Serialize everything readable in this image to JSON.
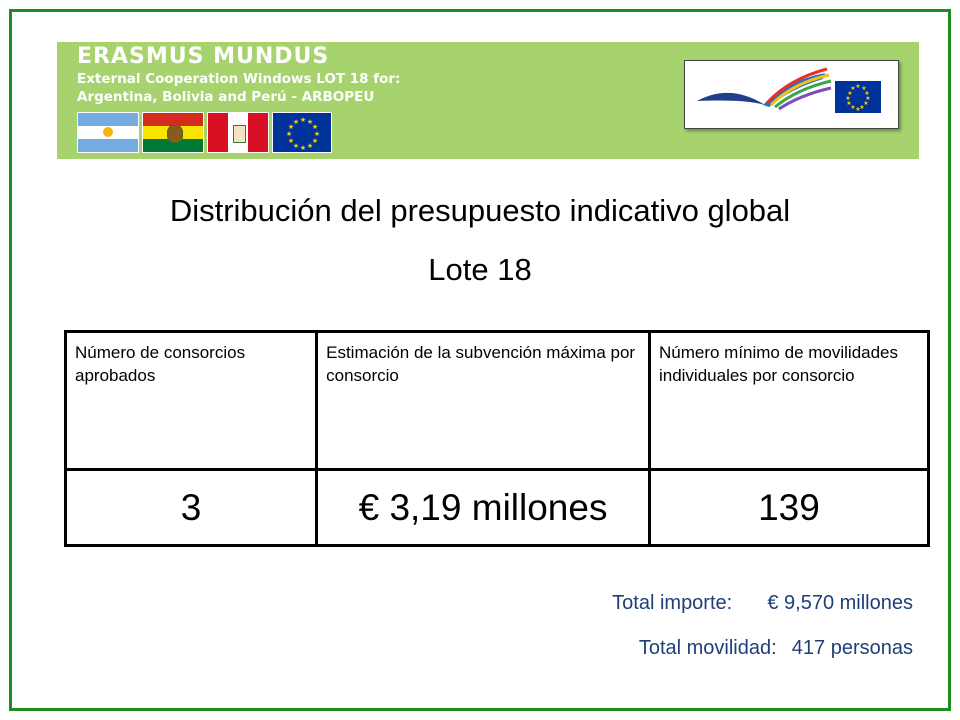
{
  "banner": {
    "title": "ERASMUS MUNDUS",
    "line1": "External Cooperation Windows LOT 18 for:",
    "line2": "Argentina, Bolivia and Perú - ARBOPEU",
    "flags": [
      "argentina-flag",
      "bolivia-flag",
      "peru-flag",
      "eu-flag"
    ]
  },
  "heading": {
    "title": "Distribución del presupuesto indicativo global",
    "subtitle": "Lote 18"
  },
  "table": {
    "headers": [
      "Número de consorcios aprobados",
      "Estimación de la subvención máxima por consorcio",
      "Número mínimo de movilidades individuales por consorcio"
    ],
    "values": [
      "3",
      "€ 3,19 millones",
      "139"
    ]
  },
  "totals": {
    "importe_label": "Total importe:",
    "importe_value": "€ 9,570 millones",
    "movilidad_label": "Total movilidad:",
    "movilidad_value": "417 personas"
  },
  "colors": {
    "frame": "#1f8a1f",
    "banner": "#a6d36d",
    "totals_text": "#1f3f7a",
    "eu_blue": "#003399"
  }
}
